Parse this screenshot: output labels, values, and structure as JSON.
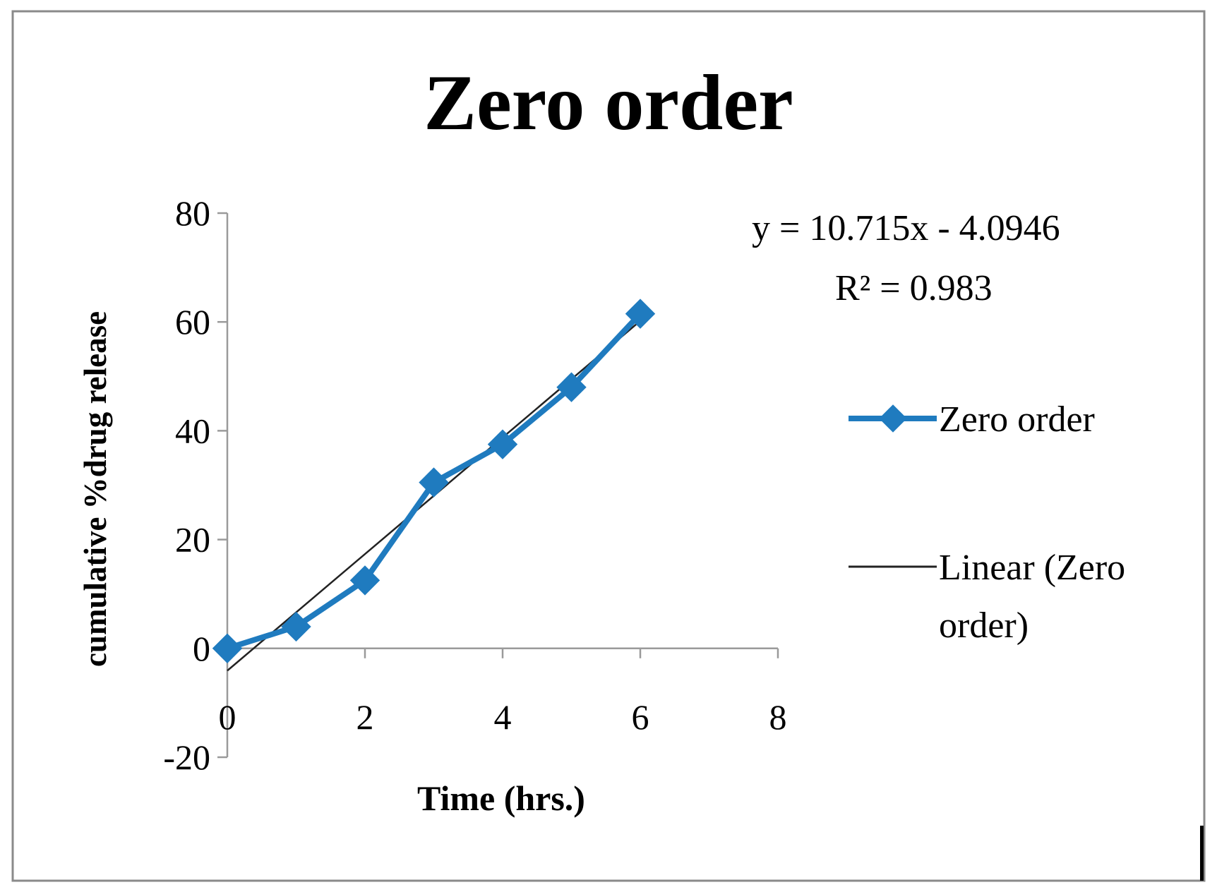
{
  "chart_data": {
    "type": "scatter",
    "title": "Zero order",
    "xlabel": "Time (hrs.)",
    "ylabel": "cumulative %drug release",
    "xlim": [
      0,
      8
    ],
    "ylim": [
      -20,
      80
    ],
    "x_ticks": [
      "0",
      "2",
      "4",
      "6",
      "8"
    ],
    "y_ticks": [
      "-20",
      "0",
      "20",
      "40",
      "60",
      "80"
    ],
    "grid": false,
    "legend_position": "right",
    "series": [
      {
        "name": "Zero order",
        "color": "#1f7bbf",
        "marker": "diamond",
        "x": [
          0,
          1,
          2,
          3,
          4,
          5,
          6
        ],
        "y": [
          0,
          4,
          12.5,
          30.5,
          37.5,
          48,
          61.5
        ]
      },
      {
        "name": "Linear (Zero order)",
        "color": "#222222",
        "type": "trendline",
        "slope": 10.715,
        "intercept": -4.0946,
        "x": [
          0,
          6
        ]
      }
    ],
    "annotations": {
      "equation": "y = 10.715x - 4.0946",
      "r_squared": "R² = 0.983"
    },
    "legend": {
      "series1_label": "Zero order",
      "series2_label_line1": "Linear (Zero",
      "series2_label_line2": "order)"
    }
  }
}
